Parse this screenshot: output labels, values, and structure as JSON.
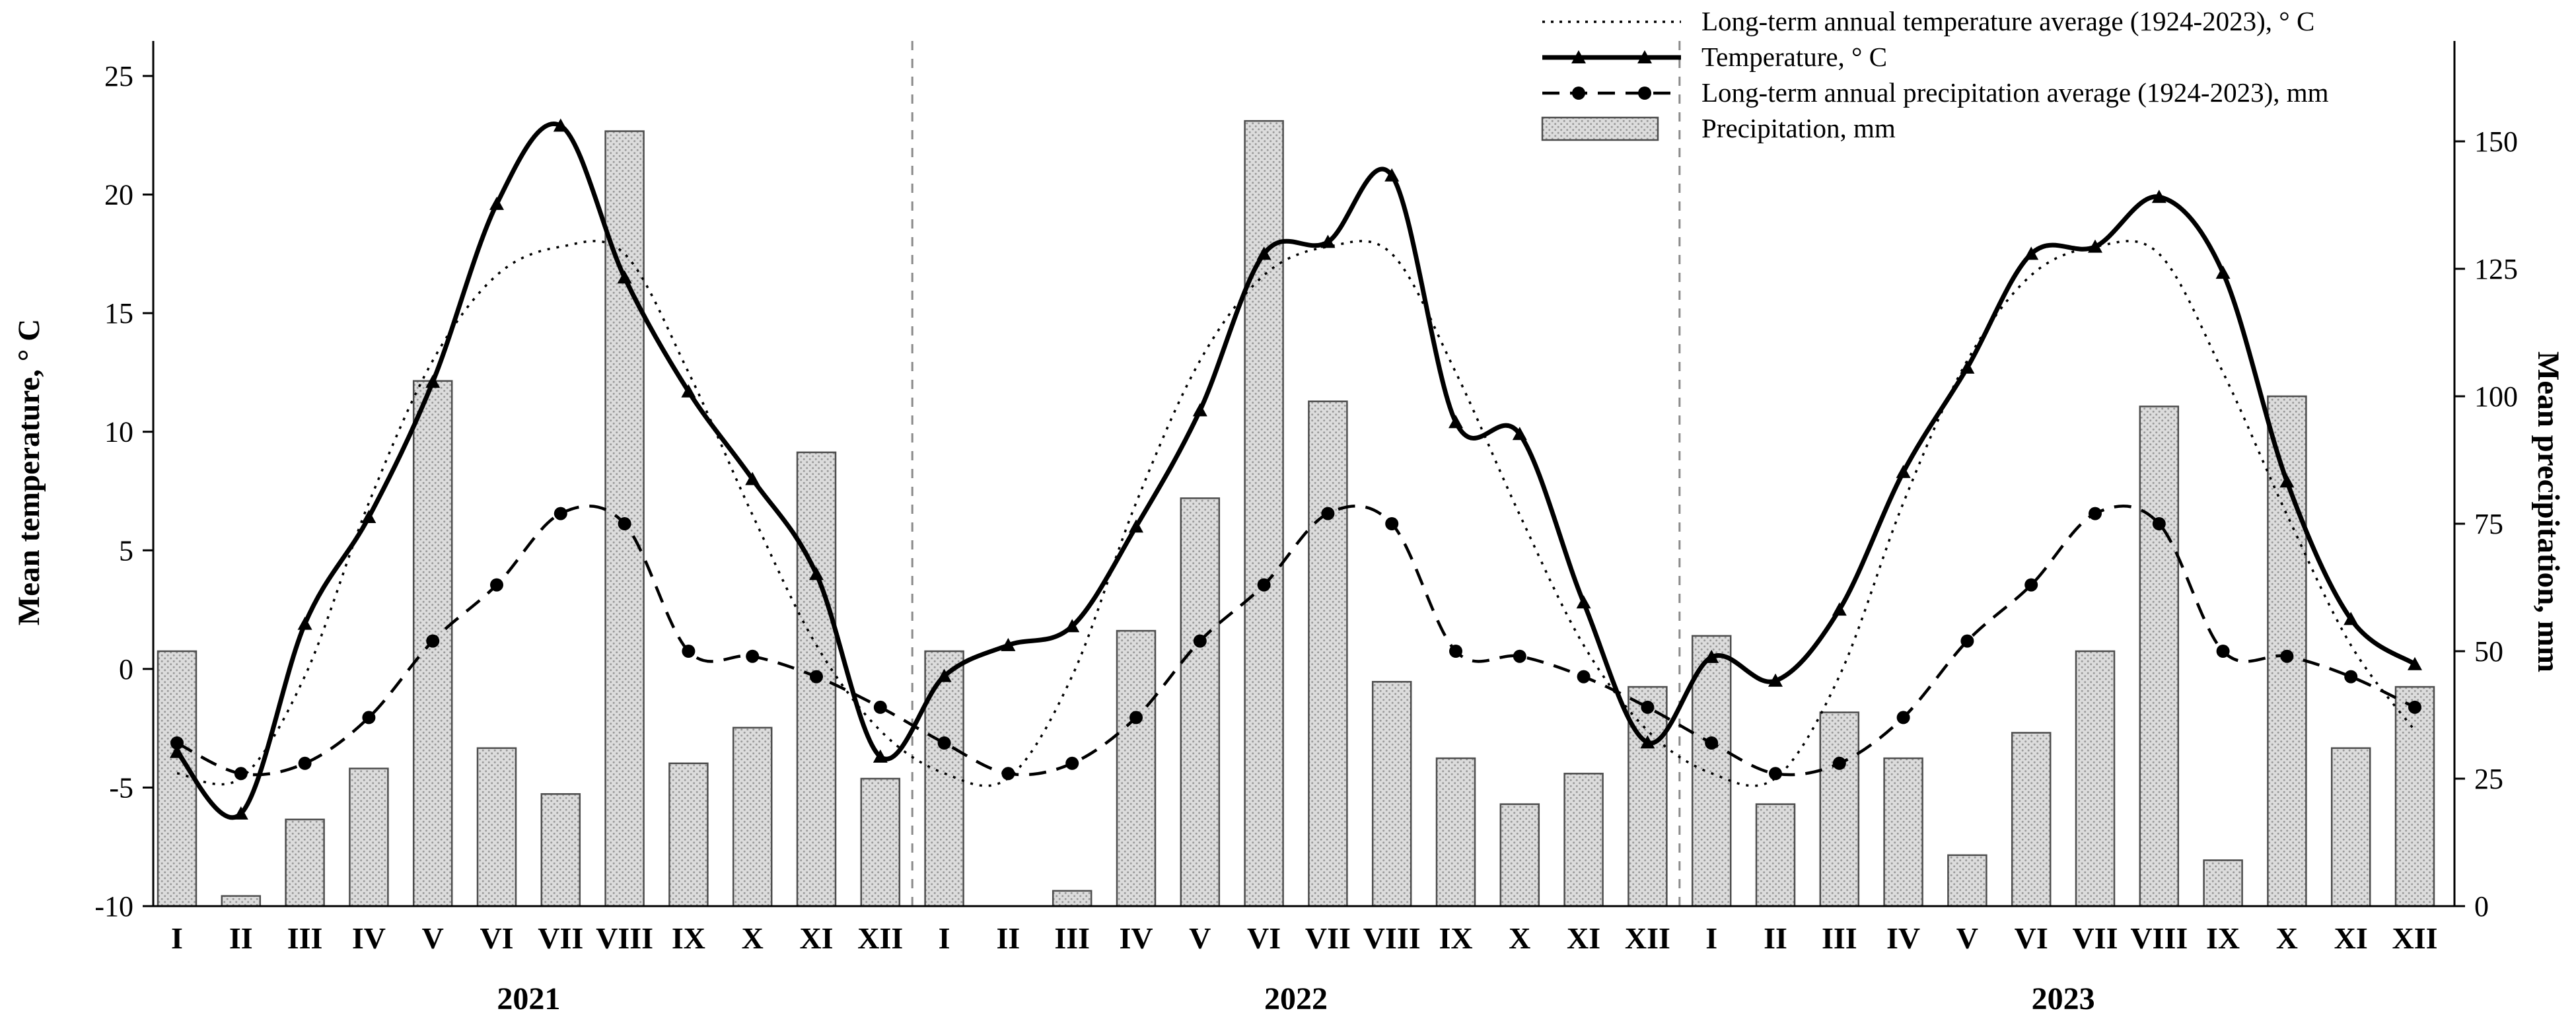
{
  "chart_data": {
    "type": "combo",
    "months": [
      "I",
      "II",
      "III",
      "IV",
      "V",
      "VI",
      "VII",
      "VIII",
      "IX",
      "X",
      "XI",
      "XII"
    ],
    "years": [
      "2021",
      "2022",
      "2023"
    ],
    "left_axis": {
      "label": "Mean temperature, ° C",
      "min": -10,
      "max": 25,
      "ticks": [
        -10,
        -5,
        0,
        5,
        10,
        15,
        20,
        25
      ]
    },
    "right_axis": {
      "label": "Mean precipitation, mm",
      "min": 0,
      "max": 157,
      "ticks": [
        0,
        25,
        50,
        75,
        100,
        125,
        150
      ]
    },
    "grid": false,
    "legend_position": "top-right",
    "series": [
      {
        "name": "Long-term annual temperature average (1924-2023), ° C",
        "type": "line",
        "style": "dotted",
        "marker": "none",
        "axis": "left",
        "repeat_annual": true,
        "values": [
          -4.4,
          -4.6,
          -0.3,
          7.0,
          13.0,
          16.6,
          17.8,
          17.5,
          12.5,
          6.5,
          1.0,
          -2.6
        ]
      },
      {
        "name": "Temperature, ° C",
        "type": "line",
        "style": "solid",
        "marker": "triangle",
        "axis": "left",
        "values": [
          -3.5,
          -6.1,
          1.9,
          6.4,
          12.1,
          19.6,
          22.9,
          16.5,
          11.7,
          8.0,
          4.0,
          -3.7,
          -0.3,
          1.0,
          1.8,
          6.0,
          10.9,
          17.5,
          18.0,
          20.8,
          10.4,
          9.9,
          2.8,
          -3.1,
          0.5,
          -0.5,
          2.5,
          8.3,
          12.7,
          17.5,
          17.8,
          19.9,
          16.7,
          7.9,
          2.1,
          0.2
        ]
      },
      {
        "name": "Long-term annual precipitation average (1924-2023), mm",
        "type": "line",
        "style": "dashed",
        "marker": "circle",
        "axis": "right",
        "repeat_annual": true,
        "values": [
          32,
          26,
          28,
          37,
          52,
          63,
          77,
          75,
          50,
          49,
          45,
          39
        ]
      },
      {
        "name": "Precipitation, mm",
        "type": "bar",
        "axis": "right",
        "values": [
          50,
          2,
          17,
          27,
          103,
          31,
          22,
          152,
          28,
          35,
          89,
          25,
          50,
          0,
          3,
          54,
          80,
          154,
          99,
          44,
          29,
          20,
          26,
          43,
          53,
          20,
          38,
          29,
          10,
          34,
          50,
          98,
          9,
          100,
          31,
          43
        ]
      }
    ]
  }
}
